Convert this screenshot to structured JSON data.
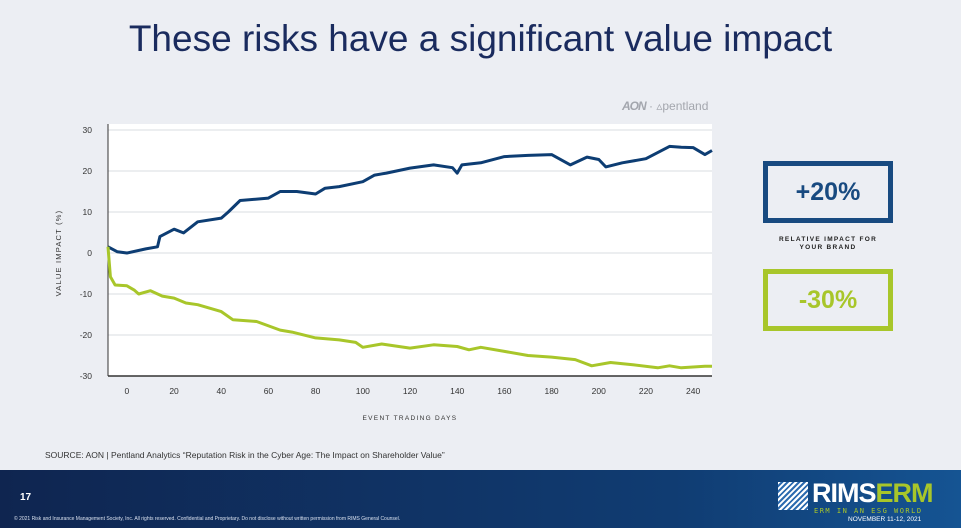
{
  "slide": {
    "title": "These risks have a significant value impact",
    "logo": {
      "aon": "AON",
      "pentland": "pentland"
    },
    "boxes": {
      "positive": "+20%",
      "negative": "-30%",
      "caption_line1": "RELATIVE IMPACT FOR",
      "caption_line2": "YOUR BRAND"
    },
    "source": "SOURCE: AON | Pentland Analytics “Reputation Risk in the Cyber Age: The Impact on Shareholder Value”",
    "footer": {
      "page_number": "17",
      "copyright": "© 2021 Risk and Insurance Management Society, Inc. All rights reserved. Confidential and Proprietary. Do not disclose without written permission from RIMS General Counsel.",
      "brand_rims": "RIMS",
      "brand_erm": "ERM",
      "brand_tagline": "ERM IN AN ESG WORLD",
      "brand_date": "NOVEMBER 11-12, 2021"
    }
  },
  "chart_data": {
    "type": "line",
    "xlabel": "EVENT TRADING DAYS",
    "ylabel": "VALUE IMPACT (%)",
    "xlim": [
      -8,
      248
    ],
    "ylim": [
      -30,
      30
    ],
    "xticks": [
      0,
      20,
      40,
      60,
      80,
      100,
      120,
      140,
      160,
      180,
      200,
      220,
      240
    ],
    "yticks": [
      30,
      20,
      10,
      0,
      -10,
      -20,
      -30
    ],
    "grid": "horizontal",
    "colors": {
      "upper": "#0d3d73",
      "lower": "#a8c62a"
    },
    "series": [
      {
        "x": [
          -8,
          -4,
          0,
          8,
          13,
          14,
          20,
          24,
          30,
          40,
          43,
          48,
          60,
          65,
          72,
          80,
          84,
          90,
          100,
          105,
          110,
          120,
          130,
          138,
          140,
          142,
          150,
          160,
          170,
          180,
          188,
          195,
          200,
          203,
          210,
          220,
          225,
          230,
          235,
          240,
          245,
          248
        ],
        "values": [
          1.5,
          0.3,
          0,
          1,
          1.5,
          4,
          5.8,
          4.9,
          7.6,
          8.5,
          10,
          12.8,
          13.4,
          15,
          15,
          14.4,
          15.8,
          16.2,
          17.4,
          19,
          19.5,
          20.7,
          21.5,
          20.8,
          19.5,
          21.5,
          22,
          23.5,
          23.8,
          24,
          21.5,
          23.4,
          22.8,
          21,
          22,
          23,
          24.5,
          26,
          25.8,
          25.7,
          24,
          25
        ]
      },
      {
        "x": [
          -8,
          -7,
          -5,
          0,
          3,
          5,
          10,
          15,
          20,
          25,
          30,
          40,
          45,
          55,
          65,
          70,
          80,
          90,
          97,
          100,
          108,
          120,
          130,
          140,
          145,
          150,
          160,
          170,
          180,
          190,
          197,
          205,
          215,
          225,
          230,
          235,
          245,
          248
        ],
        "values": [
          1.5,
          -5.8,
          -7.8,
          -8,
          -9,
          -10,
          -9.2,
          -10.5,
          -11,
          -12.2,
          -12.6,
          -14.3,
          -16.3,
          -16.7,
          -18.8,
          -19.3,
          -20.7,
          -21.2,
          -21.8,
          -23,
          -22.2,
          -23.2,
          -22.4,
          -22.8,
          -23.6,
          -23,
          -24,
          -25,
          -25.4,
          -26,
          -27.5,
          -26.7,
          -27.3,
          -28,
          -27.5,
          -28,
          -27.6,
          -27.6
        ]
      }
    ]
  }
}
